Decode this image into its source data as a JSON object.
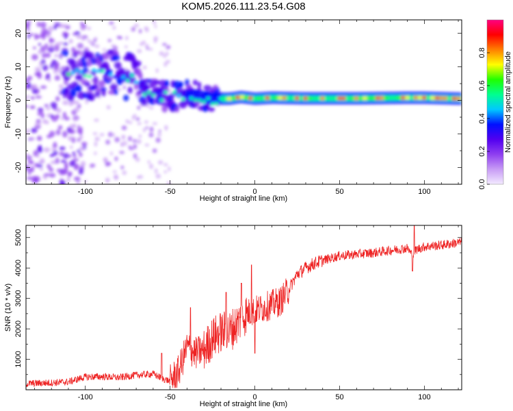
{
  "title": "KOM5.2026.111.23.54.G08",
  "chart_data": [
    {
      "type": "heatmap",
      "title": "KOM5.2026.111.23.54.G08",
      "xlabel": "Height of straight line (km)",
      "ylabel": "Frequency (Hz)",
      "xlim": [
        -135,
        122
      ],
      "ylim": [
        -25,
        24
      ],
      "xticks": [
        -100,
        -50,
        0,
        50,
        100
      ],
      "xtick_labels": [
        "-100",
        "-50",
        "0",
        "50",
        "100"
      ],
      "yticks": [
        20,
        10,
        0,
        -10,
        -20
      ],
      "ytick_labels": [
        "20",
        "10",
        "0",
        "-10",
        "-20"
      ],
      "colorbar": {
        "label": "Normalized spectral amplitude",
        "range": [
          0,
          1
        ],
        "ticks": [
          0.0,
          0.2,
          0.4,
          0.6,
          0.8
        ],
        "tick_labels": [
          "0.0",
          "0.2",
          "0.4",
          "0.6",
          "0.8"
        ],
        "colormap": [
          "#f3eaff",
          "#c89cf5",
          "#8f3ff0",
          "#5200f0",
          "#0010ff",
          "#00c8ff",
          "#00ff90",
          "#20ff00",
          "#ffff00",
          "#ff8000",
          "#ff0000",
          "#ff0080"
        ]
      },
      "ridge": [
        {
          "x": -112,
          "f": 7.5
        },
        {
          "x": -100,
          "f": 7.5
        },
        {
          "x": -90,
          "f": 8
        },
        {
          "x": -80,
          "f": 7.5
        },
        {
          "x": -72,
          "f": 6
        },
        {
          "x": -68,
          "f": 4
        },
        {
          "x": -62,
          "f": 2
        },
        {
          "x": -55,
          "f": 1.5
        },
        {
          "x": -45,
          "f": 1
        },
        {
          "x": -35,
          "f": 1.5
        },
        {
          "x": -25,
          "f": 0.5
        },
        {
          "x": -15,
          "f": 0.5
        },
        {
          "x": -8,
          "f": 1
        },
        {
          "x": 0,
          "f": 0.5
        },
        {
          "x": 10,
          "f": 0.8
        },
        {
          "x": 30,
          "f": 0.6
        },
        {
          "x": 60,
          "f": 0.6
        },
        {
          "x": 90,
          "f": 0.8
        },
        {
          "x": 100,
          "f": 0.8
        },
        {
          "x": 122,
          "f": 0.5
        }
      ]
    },
    {
      "type": "line",
      "xlabel": "Height of straight line (km)",
      "ylabel": "SNR (10 * v/v)",
      "xlim": [
        -135,
        122
      ],
      "ylim": [
        0,
        5400
      ],
      "xticks": [
        -100,
        -50,
        0,
        50,
        100
      ],
      "xtick_labels": [
        "-100",
        "-50",
        "0",
        "50",
        "100"
      ],
      "yticks": [
        1000,
        2000,
        3000,
        4000,
        5000
      ],
      "ytick_labels": [
        "1000",
        "2000",
        "3000",
        "4000",
        "5000"
      ],
      "line_color": "#ee2222",
      "series": [
        {
          "name": "SNR",
          "x": [
            -135,
            -120,
            -110,
            -100,
            -90,
            -80,
            -70,
            -60,
            -55,
            -50,
            -45,
            -40,
            -35,
            -30,
            -25,
            -20,
            -15,
            -10,
            -5,
            0,
            5,
            10,
            15,
            20,
            25,
            30,
            35,
            40,
            50,
            60,
            70,
            80,
            90,
            93,
            95,
            100,
            110,
            122
          ],
          "y": [
            200,
            230,
            260,
            420,
            430,
            400,
            480,
            520,
            380,
            280,
            600,
            1400,
            1200,
            1300,
            1700,
            1900,
            1900,
            2200,
            2500,
            2600,
            2700,
            2800,
            2900,
            3300,
            3800,
            4000,
            4150,
            4250,
            4400,
            4450,
            4500,
            4580,
            4650,
            4400,
            4600,
            4700,
            4750,
            4850
          ]
        }
      ],
      "spikes": [
        {
          "x": -55,
          "y": 1200
        },
        {
          "x": -38,
          "y": 2700
        },
        {
          "x": -17,
          "y": 3200
        },
        {
          "x": -8,
          "y": 3500
        },
        {
          "x": -2,
          "y": 4100
        },
        {
          "x": 0,
          "y": 1200
        },
        {
          "x": 94,
          "y": 5400
        },
        {
          "x": 93,
          "y": 3900
        }
      ]
    }
  ]
}
